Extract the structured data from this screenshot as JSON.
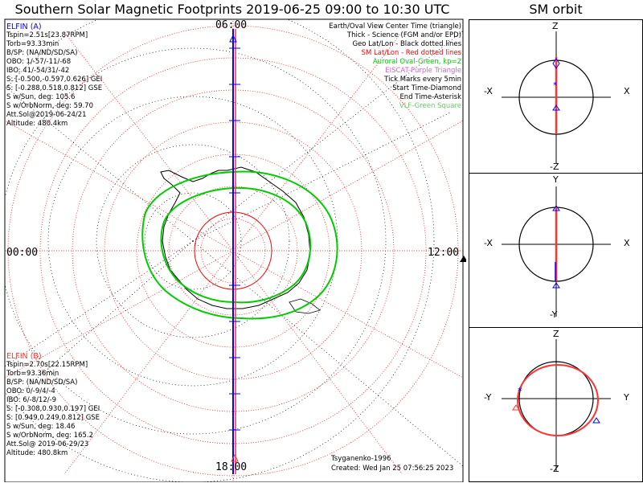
{
  "header": {
    "title": "Southern Solar Magnetic Footprints 2019-06-25 09:00 to 10:30 UTC",
    "orbit_title": "SM orbit"
  },
  "map": {
    "clock_top": "06:00",
    "clock_left": "00:00",
    "clock_right": "12:00",
    "clock_bottom": "18:00"
  },
  "elfin_a": {
    "name": "ELFIN (A)",
    "color": "#0000ff",
    "lines": [
      "Tspin=2.51s[23.87RPM]",
      "Torb=93.33min",
      "B/SP: (NA/ND/SD/SA)",
      "OBO: 1/-57/-11/-68",
      "IBO: 41/-54/31/-42",
      "S: [-0.500,-0.597,0.626] GEI",
      "S: [-0.288,0.518,0.812] GSE",
      "S w/Sun, deg: 105.6",
      "S w/OrbNorm, deg: 59.70",
      "Att.Sol@2019-06-24/21",
      "Altitude: 480.4km"
    ]
  },
  "elfin_b": {
    "name": "ELFIN (B)",
    "color": "#ff3333",
    "lines": [
      "Tspin=2.70s[22.15RPM]",
      "Torb=93.36min",
      "B/SP: (NA/ND/SD/SA)",
      "OBO: 0/-9/4/-4",
      "IBO: 6/-8/12/-9",
      "S: [-0.308,0.930,0.197] GEI",
      "S: [0.949,0.249,0.812] GSE",
      "S w/Sun, deg: 18.46",
      "S w/OrbNorm, deg: 165.2",
      "Att.Sol@ 2019-06-29/23",
      "Altitude: 480.8km"
    ]
  },
  "legend": [
    {
      "text": "Earth/Oval View Center Time (triangle)",
      "color": "#000000"
    },
    {
      "text": "Thick - Science (FGM and/or EPD)",
      "color": "#000000"
    },
    {
      "text": "Geo Lat/Lon - Black dotted lines",
      "color": "#000000"
    },
    {
      "text": "SM Lat/Lon - Red dotted lines",
      "color": "#ff0000"
    },
    {
      "text": "Auroral Oval-Green, kp=2",
      "color": "#00cc00"
    },
    {
      "text": "EISCAT-Purple Triangle",
      "color": "#cc66cc"
    },
    {
      "text": "Tick Marks every 5min",
      "color": "#000000"
    },
    {
      "text": "Start Time-Diamond",
      "color": "#000000"
    },
    {
      "text": "End Time-Asterisk",
      "color": "#000000"
    },
    {
      "text": "VLF-Green Square",
      "color": "#66cc66"
    }
  ],
  "footer": {
    "credit": "Tsyganenko-1996",
    "created": "Created: Wed Jan 25 07:56:25 2023"
  },
  "orbit_panels": [
    {
      "top": "Z",
      "bottom": "-Z",
      "left": "-X",
      "right": "X"
    },
    {
      "top": "Y",
      "bottom": "-Y",
      "left": "-X",
      "right": "X"
    },
    {
      "top": "Z",
      "bottom": "-Z",
      "left": "-Y",
      "right": "Y"
    }
  ],
  "colors": {
    "sm_grid": "#ff0000",
    "geo_grid": "#000000",
    "oval": "#00cc00",
    "track_a": "#0000ff",
    "track_b": "#ff3333"
  }
}
